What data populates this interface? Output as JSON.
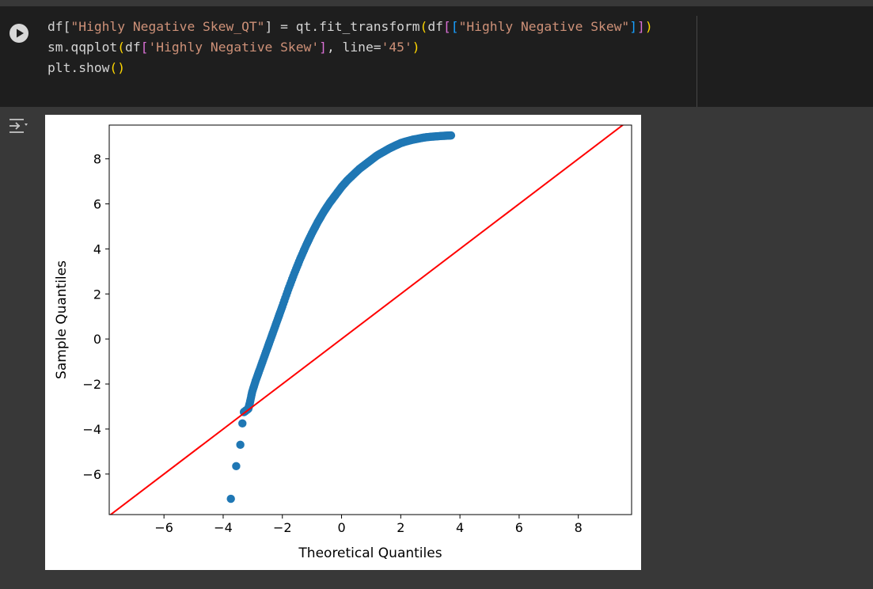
{
  "code_cell": {
    "lines": [
      [
        {
          "t": "df[",
          "c": "plain"
        },
        {
          "t": "\"Highly Negative Skew_QT\"",
          "c": "str"
        },
        {
          "t": "] = qt.fit_transform",
          "c": "plain"
        },
        {
          "t": "(",
          "c": "br1"
        },
        {
          "t": "df",
          "c": "plain"
        },
        {
          "t": "[",
          "c": "br2"
        },
        {
          "t": "[",
          "c": "br3"
        },
        {
          "t": "\"Highly Negative Skew\"",
          "c": "str"
        },
        {
          "t": "]",
          "c": "br3"
        },
        {
          "t": "]",
          "c": "br2"
        },
        {
          "t": ")",
          "c": "br1"
        }
      ],
      [
        {
          "t": "sm.qqplot",
          "c": "plain"
        },
        {
          "t": "(",
          "c": "br1"
        },
        {
          "t": "df",
          "c": "plain"
        },
        {
          "t": "[",
          "c": "br2"
        },
        {
          "t": "'Highly Negative Skew'",
          "c": "str"
        },
        {
          "t": "]",
          "c": "br2"
        },
        {
          "t": ", line=",
          "c": "plain"
        },
        {
          "t": "'45'",
          "c": "str"
        },
        {
          "t": ")",
          "c": "br1"
        }
      ],
      [
        {
          "t": "plt.show",
          "c": "plain"
        },
        {
          "t": "()",
          "c": "br1"
        }
      ]
    ]
  },
  "icons": {
    "run": "play-icon",
    "output_toggle": "output-toggle-icon"
  },
  "colors": {
    "cell_background": "#1e1e1e",
    "page_background": "#383838",
    "string": "#ce9178",
    "bracket_level1": "#ffd700",
    "bracket_level2": "#da70d6",
    "bracket_level3": "#179fff",
    "marker": "#1f77b4",
    "reference_line": "#ff0000"
  },
  "chart_data": {
    "type": "scatter",
    "xlabel": "Theoretical Quantiles",
    "ylabel": "Sample Quantiles",
    "xlim": [
      -7.85,
      9.8
    ],
    "ylim": [
      -7.8,
      9.5
    ],
    "xticks": [
      -6,
      -4,
      -2,
      0,
      2,
      4,
      6,
      8
    ],
    "yticks": [
      -6,
      -4,
      -2,
      0,
      2,
      4,
      6,
      8
    ],
    "grid": false,
    "series": [
      {
        "marker": "circle",
        "x": [
          -3.74,
          -3.56,
          -3.42,
          -3.35,
          -3.3,
          -3.25,
          -3.2,
          -3.15,
          -3.1,
          -3.02,
          -2.9,
          -2.75,
          -2.6,
          -2.45,
          -2.3,
          -2.15,
          -2.0,
          -1.8,
          -1.6,
          -1.4,
          -1.2,
          -1.0,
          -0.8,
          -0.6,
          -0.4,
          -0.2,
          0.0,
          0.2,
          0.4,
          0.6,
          0.8,
          1.0,
          1.2,
          1.4,
          1.6,
          1.8,
          2.0,
          2.2,
          2.4,
          2.6,
          2.8,
          3.0,
          3.2,
          3.4,
          3.55,
          3.7
        ],
        "y": [
          -7.1,
          -5.65,
          -4.7,
          -3.75,
          -3.25,
          -3.2,
          -3.15,
          -3.1,
          -2.85,
          -2.35,
          -1.85,
          -1.3,
          -0.75,
          -0.2,
          0.35,
          0.9,
          1.45,
          2.2,
          2.9,
          3.55,
          4.15,
          4.7,
          5.2,
          5.65,
          6.05,
          6.4,
          6.75,
          7.05,
          7.3,
          7.55,
          7.75,
          7.95,
          8.15,
          8.3,
          8.45,
          8.58,
          8.7,
          8.78,
          8.85,
          8.9,
          8.95,
          8.98,
          9.0,
          9.02,
          9.03,
          9.04
        ]
      }
    ],
    "reference_line": {
      "label": "45",
      "slope": 1,
      "intercept": 0
    }
  }
}
